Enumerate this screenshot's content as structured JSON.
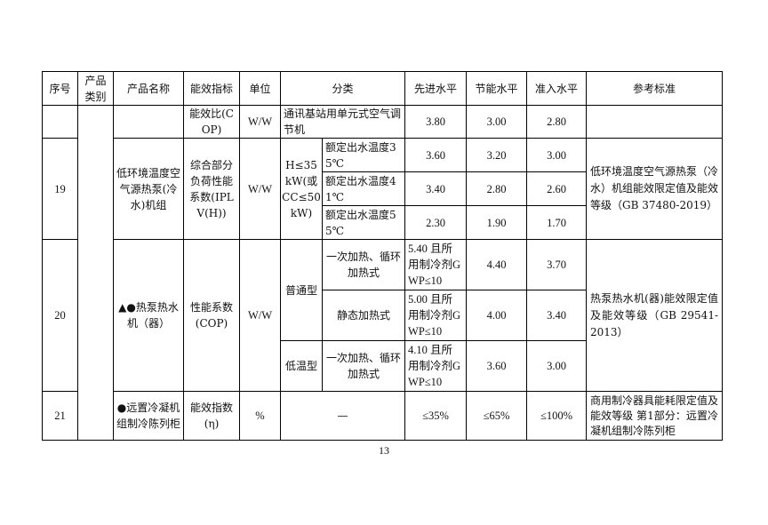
{
  "header": [
    "序号",
    "产品类别",
    "产品名称",
    "能效指标",
    "单位",
    "分类",
    "先进水平",
    "节能水平",
    "准入水平",
    "参考标准"
  ],
  "row_a": {
    "metric": "能效比(COP)",
    "unit": "W/W",
    "category": "通讯基站用单元式空气调节机",
    "advanced": "3.80",
    "saving": "3.00",
    "entry": "2.80"
  },
  "row_19": {
    "no": "19",
    "name": "低环境温度空气源热泵(冷水)机组",
    "metric": "综合部分负荷性能系数(IPLV(H))",
    "unit": "W/W",
    "condition": "H≤35 kW(或CC≤50 kW)",
    "sub": [
      {
        "label": "额定出水温度35℃",
        "advanced": "3.60",
        "saving": "3.20",
        "entry": "3.00"
      },
      {
        "label": "额定出水温度41℃",
        "advanced": "3.40",
        "saving": "2.80",
        "entry": "2.60"
      },
      {
        "label": "额定出水温度55℃",
        "advanced": "2.30",
        "saving": "1.90",
        "entry": "1.70"
      }
    ],
    "reference": "低环境温度空气源热泵（冷水）机组能效限定值及能效等级（GB 37480-2019）"
  },
  "row_20": {
    "no": "20",
    "name": "▲●热泵热水机（器）",
    "metric": "性能系数(COP)",
    "unit": "W/W",
    "type_normal": "普通型",
    "type_low": "低温型",
    "sub": [
      {
        "label": "一次加热、循环加热式",
        "advanced": "5.40 且所用制冷剂GWP≤10",
        "saving": "4.40",
        "entry": "3.70"
      },
      {
        "label": "静态加热式",
        "advanced": "5.00 且所用制冷剂GWP≤10",
        "saving": "4.00",
        "entry": "3.40"
      },
      {
        "label": "一次加热、循环加热式",
        "advanced": "4.10 且所用制冷剂GWP≤10",
        "saving": "3.60",
        "entry": "3.00"
      }
    ],
    "reference": "热泵热水机(器)能效限定值及能效等级（GB 29541-2013）"
  },
  "row_21": {
    "no": "21",
    "name": "●远置冷凝机组制冷陈列柜",
    "metric": "能效指数(η)",
    "unit": "%",
    "category": "—",
    "advanced": "≤35%",
    "saving": "≤65%",
    "entry": "≤100%",
    "reference": "商用制冷器具能耗限定值及能效等级 第1部分：远置冷凝机组制冷陈列柜"
  },
  "page_number": "13"
}
